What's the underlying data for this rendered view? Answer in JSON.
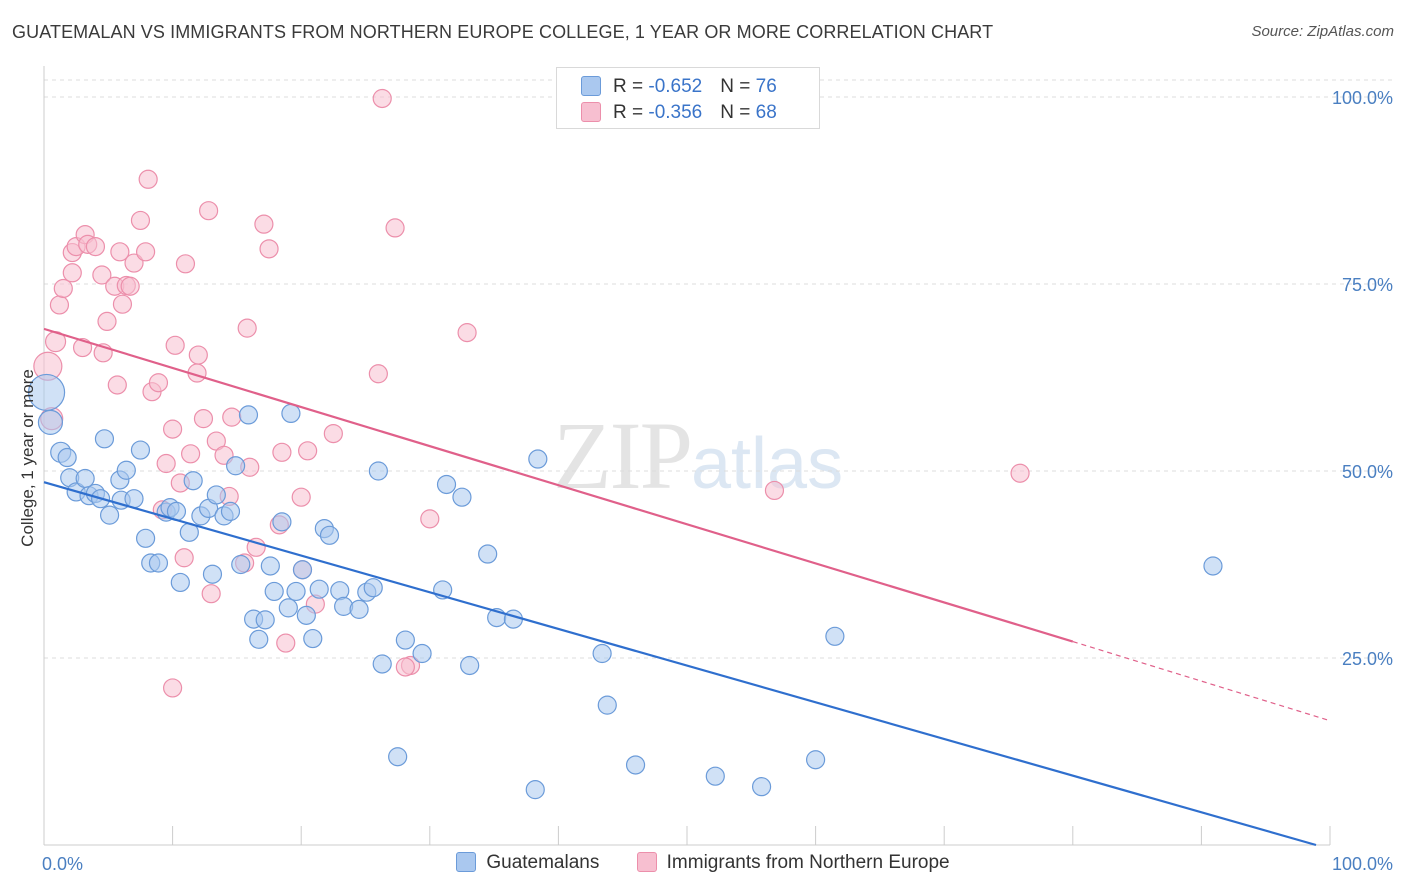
{
  "title": "GUATEMALAN VS IMMIGRANTS FROM NORTHERN EUROPE COLLEGE, 1 YEAR OR MORE CORRELATION CHART",
  "source": "Source: ZipAtlas.com",
  "watermark": {
    "zip": "ZIP",
    "atlas": "atlas"
  },
  "legend_top": [
    {
      "r_label": "R = ",
      "r_value": "-0.652",
      "n_label": "N = ",
      "n_value": "76"
    },
    {
      "r_label": "R = ",
      "r_value": "-0.356",
      "n_label": "N = ",
      "n_value": "68"
    }
  ],
  "colors": {
    "blue_fill": "#aac8ef",
    "blue_stroke": "#6b9bd9",
    "blue_line": "#2f6fce",
    "pink_fill": "#f7bfd0",
    "pink_stroke": "#ec8fab",
    "pink_line": "#e0608a",
    "grid": "#dddddd",
    "axis_text": "#4a7fc1"
  },
  "chart_data": {
    "type": "scatter",
    "title": "GUATEMALAN VS IMMIGRANTS FROM NORTHERN EUROPE COLLEGE, 1 YEAR OR MORE CORRELATION CHART",
    "xlabel": "",
    "ylabel": "College, 1 year or more",
    "xlim": [
      0,
      100
    ],
    "ylim": [
      0,
      100
    ],
    "x_tick_labels": [
      "0.0%",
      "100.0%"
    ],
    "y_tick_labels": [
      "25.0%",
      "50.0%",
      "75.0%",
      "100.0%"
    ],
    "y_ticks": [
      25,
      50,
      75,
      100
    ],
    "grid": true,
    "legend_placement": "bottom",
    "series": [
      {
        "name": "Guatemalans",
        "r": -0.652,
        "n": 76,
        "trend": {
          "x0": 0,
          "y0": 48.5,
          "x1": 100,
          "y1": 0
        },
        "points": [
          [
            0.2,
            60.5,
            18
          ],
          [
            0.5,
            56.5,
            12
          ],
          [
            1.3,
            52.5,
            10
          ],
          [
            1.8,
            51.8,
            9
          ],
          [
            2.0,
            49.1,
            9
          ],
          [
            2.5,
            47.2,
            9
          ],
          [
            3.2,
            49.0,
            9
          ],
          [
            3.5,
            46.7,
            9
          ],
          [
            4.0,
            47.0,
            9
          ],
          [
            4.4,
            46.3,
            9
          ],
          [
            4.7,
            54.3,
            9
          ],
          [
            5.1,
            44.1,
            9
          ],
          [
            5.9,
            48.8,
            9
          ],
          [
            6.0,
            46.1,
            9
          ],
          [
            6.4,
            50.1,
            9
          ],
          [
            7.0,
            46.3,
            9
          ],
          [
            7.5,
            52.8,
            9
          ],
          [
            7.9,
            41.0,
            9
          ],
          [
            8.3,
            37.7,
            9
          ],
          [
            8.9,
            37.7,
            9
          ],
          [
            9.5,
            44.5,
            9
          ],
          [
            9.8,
            45.1,
            9
          ],
          [
            10.3,
            44.6,
            9
          ],
          [
            10.6,
            35.1,
            9
          ],
          [
            11.3,
            41.8,
            9
          ],
          [
            11.6,
            48.7,
            9
          ],
          [
            12.2,
            44.0,
            9
          ],
          [
            12.8,
            45.0,
            9
          ],
          [
            13.1,
            36.2,
            9
          ],
          [
            13.4,
            46.8,
            9
          ],
          [
            14.0,
            44.0,
            9
          ],
          [
            14.5,
            44.6,
            9
          ],
          [
            14.9,
            50.7,
            9
          ],
          [
            15.3,
            37.5,
            9
          ],
          [
            15.9,
            57.5,
            9
          ],
          [
            16.3,
            30.2,
            9
          ],
          [
            16.7,
            27.5,
            9
          ],
          [
            17.2,
            30.1,
            9
          ],
          [
            17.6,
            37.3,
            9
          ],
          [
            17.9,
            33.9,
            9
          ],
          [
            18.5,
            43.2,
            9
          ],
          [
            19.0,
            31.7,
            9
          ],
          [
            19.2,
            57.7,
            9
          ],
          [
            19.6,
            33.9,
            9
          ],
          [
            20.1,
            36.8,
            9
          ],
          [
            20.4,
            30.7,
            9
          ],
          [
            20.9,
            27.6,
            9
          ],
          [
            21.4,
            34.2,
            9
          ],
          [
            21.8,
            42.3,
            9
          ],
          [
            22.2,
            41.4,
            9
          ],
          [
            23.0,
            34.0,
            9
          ],
          [
            23.3,
            31.9,
            9
          ],
          [
            24.5,
            31.5,
            9
          ],
          [
            25.1,
            33.8,
            9
          ],
          [
            25.6,
            34.4,
            9
          ],
          [
            26.0,
            50.0,
            9
          ],
          [
            26.3,
            24.2,
            9
          ],
          [
            27.5,
            11.8,
            9
          ],
          [
            28.1,
            27.4,
            9
          ],
          [
            29.4,
            25.6,
            9
          ],
          [
            31.0,
            34.1,
            9
          ],
          [
            31.3,
            48.2,
            9
          ],
          [
            32.5,
            46.5,
            9
          ],
          [
            33.1,
            24.0,
            9
          ],
          [
            34.5,
            38.9,
            9
          ],
          [
            35.2,
            30.4,
            9
          ],
          [
            36.5,
            30.2,
            9
          ],
          [
            38.2,
            7.4,
            9
          ],
          [
            38.4,
            51.6,
            9
          ],
          [
            43.4,
            25.6,
            9
          ],
          [
            43.8,
            18.7,
            9
          ],
          [
            46.0,
            10.7,
            9
          ],
          [
            52.2,
            9.2,
            9
          ],
          [
            55.8,
            7.8,
            9
          ],
          [
            60.0,
            11.4,
            9
          ],
          [
            61.5,
            27.9,
            9
          ],
          [
            90.9,
            37.3,
            9
          ]
        ]
      },
      {
        "name": "Immigrants from Northern Europe",
        "r": -0.356,
        "n": 68,
        "trend": {
          "x0": 0,
          "y0": 69.0,
          "x1": 80,
          "y1": 27.2,
          "dash_x1": 100,
          "dash_y1": 16.7
        },
        "points": [
          [
            0.3,
            64.0,
            14
          ],
          [
            0.6,
            57.0,
            11
          ],
          [
            0.9,
            67.3,
            10
          ],
          [
            1.2,
            72.2,
            9
          ],
          [
            1.5,
            74.4,
            9
          ],
          [
            2.2,
            76.5,
            9
          ],
          [
            2.2,
            79.2,
            9
          ],
          [
            2.5,
            80.0,
            9
          ],
          [
            3.2,
            81.6,
            9
          ],
          [
            3.4,
            80.3,
            9
          ],
          [
            4.0,
            80.0,
            9
          ],
          [
            4.5,
            76.2,
            9
          ],
          [
            4.6,
            65.8,
            9
          ],
          [
            4.9,
            70.0,
            9
          ],
          [
            5.5,
            74.7,
            9
          ],
          [
            5.7,
            61.5,
            9
          ],
          [
            5.9,
            79.3,
            9
          ],
          [
            6.1,
            72.3,
            9
          ],
          [
            6.4,
            74.8,
            9
          ],
          [
            6.7,
            74.7,
            9
          ],
          [
            7.0,
            77.8,
            9
          ],
          [
            7.5,
            83.5,
            9
          ],
          [
            7.9,
            79.3,
            9
          ],
          [
            8.1,
            89.0,
            9
          ],
          [
            8.4,
            60.6,
            9
          ],
          [
            8.9,
            61.8,
            9
          ],
          [
            9.5,
            51.0,
            9
          ],
          [
            10.0,
            55.6,
            9
          ],
          [
            10.0,
            21.0,
            9
          ],
          [
            10.2,
            66.8,
            9
          ],
          [
            10.6,
            48.4,
            9
          ],
          [
            10.9,
            38.4,
            9
          ],
          [
            11.0,
            77.7,
            9
          ],
          [
            11.4,
            52.3,
            9
          ],
          [
            11.9,
            63.1,
            9
          ],
          [
            12.4,
            57.0,
            9
          ],
          [
            12.8,
            84.8,
            9
          ],
          [
            13.0,
            33.6,
            9
          ],
          [
            13.4,
            54.0,
            9
          ],
          [
            14.0,
            52.1,
            9
          ],
          [
            14.4,
            46.6,
            9
          ],
          [
            14.6,
            57.2,
            9
          ],
          [
            15.6,
            37.7,
            9
          ],
          [
            15.8,
            69.1,
            9
          ],
          [
            16.5,
            39.8,
            9
          ],
          [
            17.1,
            83.0,
            9
          ],
          [
            17.5,
            79.7,
            9
          ],
          [
            18.3,
            42.8,
            9
          ],
          [
            18.5,
            52.5,
            9
          ],
          [
            18.8,
            27.0,
            9
          ],
          [
            20.0,
            46.5,
            9
          ],
          [
            20.1,
            36.8,
            9
          ],
          [
            20.5,
            52.7,
            9
          ],
          [
            21.1,
            32.2,
            9
          ],
          [
            26.0,
            63.0,
            9
          ],
          [
            26.3,
            99.8,
            9
          ],
          [
            27.3,
            82.5,
            9
          ],
          [
            28.5,
            24.0,
            9
          ],
          [
            30.0,
            43.6,
            9
          ],
          [
            32.9,
            68.5,
            9
          ],
          [
            56.8,
            47.4,
            9
          ],
          [
            75.9,
            49.7,
            9
          ],
          [
            28.1,
            23.8,
            9
          ],
          [
            9.2,
            44.8,
            9
          ],
          [
            3.0,
            66.5,
            9
          ],
          [
            16.0,
            50.5,
            9
          ],
          [
            22.5,
            55.0,
            9
          ],
          [
            12.0,
            65.5,
            9
          ]
        ]
      }
    ]
  }
}
